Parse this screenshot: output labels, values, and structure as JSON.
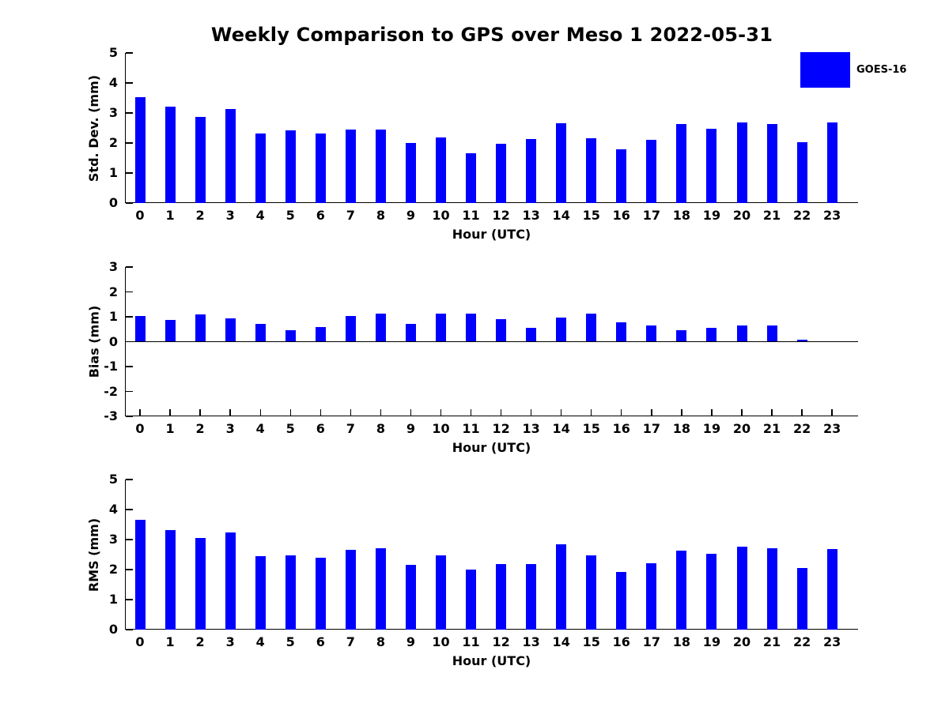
{
  "title": "Weekly Comparison to GPS over Meso 1 2022-05-31",
  "legend": {
    "label": "GOES-16",
    "color": "#0000ff"
  },
  "chart_data": [
    {
      "type": "bar",
      "panel": "std-dev",
      "ylabel": "Std. Dev. (mm)",
      "xlabel": "Hour (UTC)",
      "categories": [
        "0",
        "1",
        "2",
        "3",
        "4",
        "5",
        "6",
        "7",
        "8",
        "9",
        "10",
        "11",
        "12",
        "13",
        "14",
        "15",
        "16",
        "17",
        "18",
        "19",
        "20",
        "21",
        "22",
        "23"
      ],
      "values": [
        3.52,
        3.22,
        2.86,
        3.14,
        2.32,
        2.42,
        2.32,
        2.45,
        2.45,
        2.01,
        2.19,
        1.67,
        1.98,
        2.12,
        2.67,
        2.17,
        1.78,
        2.1,
        2.62,
        2.47,
        2.69,
        2.64,
        2.02,
        2.69
      ],
      "series_name": "GOES-16",
      "bar_color": "#0000ff",
      "ylim": [
        0,
        5
      ],
      "yticks": [
        0,
        1,
        2,
        3,
        4,
        5
      ],
      "grid": false,
      "legend_position": "top-right"
    },
    {
      "type": "bar",
      "panel": "bias",
      "ylabel": "Bias (mm)",
      "xlabel": "Hour (UTC)",
      "categories": [
        "0",
        "1",
        "2",
        "3",
        "4",
        "5",
        "6",
        "7",
        "8",
        "9",
        "10",
        "11",
        "12",
        "13",
        "14",
        "15",
        "16",
        "17",
        "18",
        "19",
        "20",
        "21",
        "22",
        "23"
      ],
      "values": [
        1.04,
        0.86,
        1.1,
        0.95,
        0.7,
        0.46,
        0.58,
        1.03,
        1.12,
        0.7,
        1.12,
        1.12,
        0.89,
        0.55,
        0.98,
        1.14,
        0.77,
        0.66,
        0.45,
        0.57,
        0.64,
        0.64,
        0.07,
        0.0
      ],
      "series_name": "GOES-16",
      "bar_color": "#0000ff",
      "ylim": [
        -3,
        3
      ],
      "yticks": [
        3,
        2,
        1,
        0,
        -1,
        -2,
        -3
      ],
      "grid": false,
      "legend_position": "none"
    },
    {
      "type": "bar",
      "panel": "rms",
      "ylabel": "RMS (mm)",
      "xlabel": "Hour (UTC)",
      "categories": [
        "0",
        "1",
        "2",
        "3",
        "4",
        "5",
        "6",
        "7",
        "8",
        "9",
        "10",
        "11",
        "12",
        "13",
        "14",
        "15",
        "16",
        "17",
        "18",
        "19",
        "20",
        "21",
        "22",
        "23"
      ],
      "values": [
        3.67,
        3.32,
        3.04,
        3.25,
        2.45,
        2.47,
        2.39,
        2.66,
        2.7,
        2.16,
        2.48,
        2.0,
        2.19,
        2.19,
        2.85,
        2.47,
        1.93,
        2.22,
        2.63,
        2.52,
        2.77,
        2.71,
        2.05,
        2.68
      ],
      "series_name": "GOES-16",
      "bar_color": "#0000ff",
      "ylim": [
        0,
        5
      ],
      "yticks": [
        0,
        1,
        2,
        3,
        4,
        5
      ],
      "grid": false,
      "legend_position": "none"
    }
  ]
}
